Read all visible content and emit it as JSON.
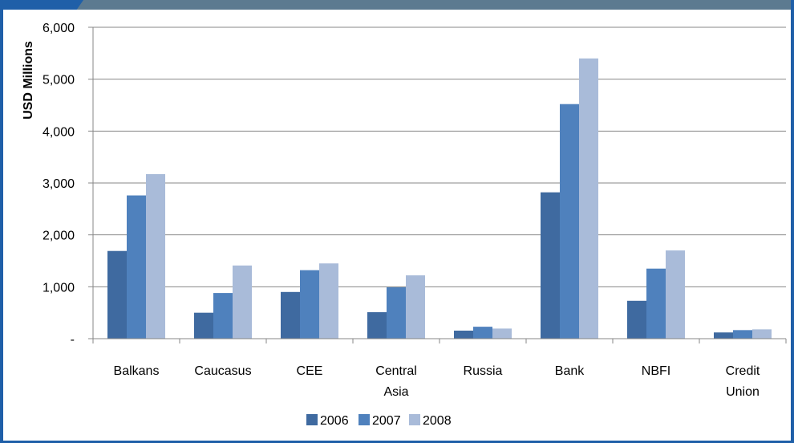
{
  "chart_data": {
    "type": "bar",
    "title": "",
    "xlabel": "",
    "ylabel": "USD Millions",
    "ylim": [
      0,
      6000
    ],
    "yticks": [
      0,
      1000,
      2000,
      3000,
      4000,
      5000,
      6000
    ],
    "ytick_labels": [
      "-",
      "1,000",
      "2,000",
      "3,000",
      "4,000",
      "5,000",
      "6,000"
    ],
    "grid": true,
    "legend_position": "bottom",
    "categories": [
      [
        "Balkans"
      ],
      [
        "Caucasus"
      ],
      [
        "CEE"
      ],
      [
        "Central",
        "Asia"
      ],
      [
        "Russia"
      ],
      [
        "Bank"
      ],
      [
        "NBFI"
      ],
      [
        "Credit",
        "Union"
      ]
    ],
    "series": [
      {
        "name": "2006",
        "color": "#3f6aa0",
        "values": [
          1690,
          500,
          900,
          510,
          155,
          2820,
          730,
          120
        ]
      },
      {
        "name": "2007",
        "color": "#4f81bd",
        "values": [
          2760,
          880,
          1320,
          990,
          230,
          4520,
          1350,
          165
        ]
      },
      {
        "name": "2008",
        "color": "#a9bbd9",
        "values": [
          3170,
          1410,
          1450,
          1220,
          195,
          5400,
          1700,
          180
        ]
      }
    ]
  }
}
